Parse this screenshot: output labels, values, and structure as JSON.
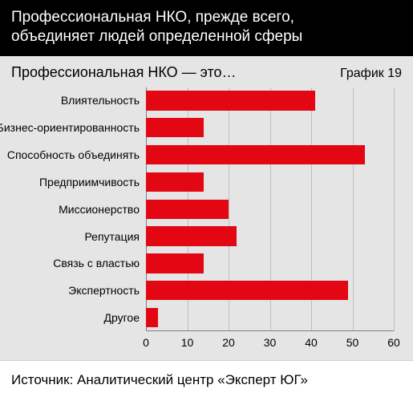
{
  "header": {
    "title_line1": "Профессиональная НКО, прежде всего,",
    "title_line2": "объединяет людей определенной сферы"
  },
  "chart": {
    "type": "bar-horizontal",
    "title": "Профессиональная НКО — это…",
    "number_label": "График 19",
    "background_color": "#e5e5e5",
    "bar_color": "#e30613",
    "grid_color": "#bfbfbf",
    "axis_color": "#808080",
    "text_color": "#000000",
    "header_bg": "#000000",
    "header_text_color": "#ffffff",
    "xlim": [
      0,
      60
    ],
    "xtick_step": 10,
    "xticks": [
      0,
      10,
      20,
      30,
      40,
      50,
      60
    ],
    "bar_height_ratio": 0.72,
    "label_fontsize": 14,
    "title_fontsize": 18,
    "categories": [
      "Влиятельность",
      "Бизнес-ориентированность",
      "Способность объединять",
      "Предприимчивость",
      "Миссионерство",
      "Репутация",
      "Связь с властью",
      "Экспертность",
      "Другое"
    ],
    "values": [
      41,
      14,
      53,
      14,
      20,
      22,
      14,
      49,
      3
    ]
  },
  "footer": {
    "source": "Источник: Аналитический центр «Эксперт ЮГ»"
  }
}
